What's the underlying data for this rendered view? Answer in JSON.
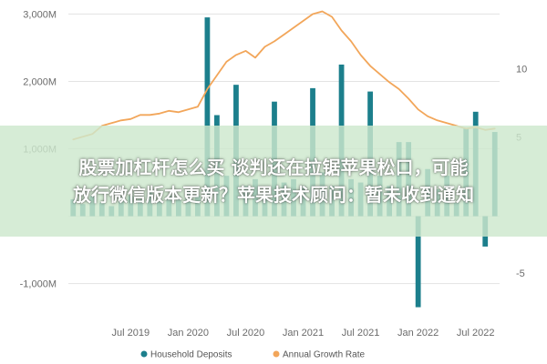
{
  "overlay": {
    "line1": "股票加杠杆怎么买 谈判还在拉锯苹果松口，可能",
    "line2": "放行微信版本更新？苹果技术顾问：暂未收到通知"
  },
  "colors": {
    "bar": "#1c7f8c",
    "line": "#f2a65a",
    "grid": "#e3e3e3",
    "text": "#6b6b6b"
  },
  "chart_data": {
    "type": "bar",
    "title": "",
    "x_ticks": [
      "Jul 2019",
      "Jan 2020",
      "Jul 2020",
      "Jan 2021",
      "Jul 2021",
      "Jan 2022",
      "Jul 2022"
    ],
    "y_left": {
      "ticks": [
        "3,000M",
        "2,000M",
        "1,000M",
        "-1,000M"
      ],
      "tick_values": [
        3000,
        2000,
        1000,
        -1000
      ],
      "range": [
        -1450,
        3100
      ]
    },
    "y_right": {
      "ticks": [
        "10",
        "5",
        "-5"
      ],
      "tick_values": [
        10,
        5,
        -5
      ],
      "range": [
        -8,
        14.5
      ]
    },
    "series": [
      {
        "name": "Household Deposits",
        "axis": "left",
        "type": "bar",
        "x": [
          "2019-01",
          "2019-02",
          "2019-03",
          "2019-04",
          "2019-05",
          "2019-06",
          "2019-07",
          "2019-08",
          "2019-09",
          "2019-10",
          "2019-11",
          "2019-12",
          "2020-01",
          "2020-02",
          "2020-03",
          "2020-04",
          "2020-05",
          "2020-06",
          "2020-07",
          "2020-08",
          "2020-09",
          "2020-10",
          "2020-11",
          "2020-12",
          "2021-01",
          "2021-02",
          "2021-03",
          "2021-04",
          "2021-05",
          "2021-06",
          "2021-07",
          "2021-08",
          "2021-09",
          "2021-10",
          "2021-11",
          "2021-12",
          "2022-01",
          "2022-02",
          "2022-03",
          "2022-04",
          "2022-05",
          "2022-06",
          "2022-07",
          "2022-08",
          "2022-09"
        ],
        "values": [
          250,
          180,
          300,
          200,
          150,
          280,
          300,
          250,
          350,
          220,
          300,
          260,
          400,
          300,
          2950,
          1500,
          600,
          1950,
          450,
          550,
          350,
          1700,
          500,
          550,
          450,
          1900,
          650,
          450,
          2250,
          550,
          500,
          1850,
          600,
          450,
          1100,
          1100,
          -1350,
          700,
          400,
          600,
          200,
          1300,
          1550,
          -450,
          1250
        ]
      },
      {
        "name": "Annual Growth Rate",
        "axis": "right",
        "type": "line",
        "x": [
          "2019-01",
          "2019-02",
          "2019-03",
          "2019-04",
          "2019-05",
          "2019-06",
          "2019-07",
          "2019-08",
          "2019-09",
          "2019-10",
          "2019-11",
          "2019-12",
          "2020-01",
          "2020-02",
          "2020-03",
          "2020-04",
          "2020-05",
          "2020-06",
          "2020-07",
          "2020-08",
          "2020-09",
          "2020-10",
          "2020-11",
          "2020-12",
          "2021-01",
          "2021-02",
          "2021-03",
          "2021-04",
          "2021-05",
          "2021-06",
          "2021-07",
          "2021-08",
          "2021-09",
          "2021-10",
          "2021-11",
          "2021-12",
          "2022-01",
          "2022-02",
          "2022-03",
          "2022-04",
          "2022-05",
          "2022-06",
          "2022-07",
          "2022-08",
          "2022-09"
        ],
        "values": [
          4.8,
          5.0,
          5.2,
          5.8,
          6.0,
          6.2,
          6.3,
          6.6,
          6.6,
          6.7,
          6.9,
          6.8,
          7.0,
          7.2,
          8.5,
          9.5,
          10.5,
          11.0,
          11.3,
          10.8,
          11.6,
          12.0,
          12.5,
          13.0,
          13.5,
          14.0,
          14.2,
          13.8,
          12.8,
          12.0,
          11.0,
          10.2,
          9.6,
          9.0,
          8.5,
          7.8,
          7.0,
          6.5,
          6.2,
          6.0,
          5.8,
          5.6,
          5.7,
          5.5,
          5.6
        ]
      }
    ],
    "legend": {
      "position": "bottom",
      "items": [
        "Household Deposits",
        "Annual Growth Rate"
      ]
    },
    "grid": true
  }
}
